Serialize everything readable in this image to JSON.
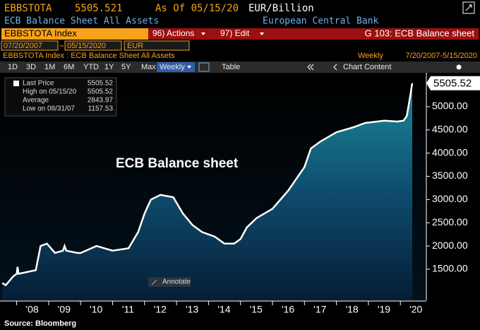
{
  "header": {
    "ticker": "EBBSTOTA",
    "price": "5505.521",
    "as_of": "As Of 05/15/20",
    "units": "EUR/Billion",
    "name": "ECB Balance Sheet All Assets",
    "issuer": "European Central Bank"
  },
  "command_bar": {
    "security": "EBBSTOTA Index",
    "actions": "96) Actions",
    "edit": "97) Edit",
    "page": "G 103: ECB Balance sheet"
  },
  "date_range": {
    "start": "07/20/2007",
    "end": "05/15/2020",
    "currency": "EUR"
  },
  "chart_header": {
    "label": "EBBSTOTA Index : ECB Balance Sheet All Assets",
    "frequency": "Weekly",
    "range": "7/20/2007-5/15/2020"
  },
  "toolbar": {
    "periods": [
      "1D",
      "3D",
      "1M",
      "6M",
      "YTD",
      "1Y",
      "5Y",
      "Max"
    ],
    "frequency": "Weekly",
    "table": "Table",
    "chart_content": "Chart Content"
  },
  "chart_data": {
    "type": "area",
    "annotation": "ECB Balance sheet",
    "legend": [
      {
        "label": "Last Price",
        "value": "5505.52"
      },
      {
        "label": "High on 05/15/20",
        "value": "5505.52"
      },
      {
        "label": "Average",
        "value": "2843.97"
      },
      {
        "label": "Low on 08/31/07",
        "value": "1157.53"
      }
    ],
    "x": [
      2007.55,
      2007.66,
      2007.9,
      2008.0,
      2008.03,
      2008.06,
      2008.6,
      2008.75,
      2008.95,
      2009.2,
      2009.45,
      2009.5,
      2009.55,
      2009.9,
      2010.0,
      2010.5,
      2010.75,
      2011.0,
      2011.5,
      2011.8,
      2012.0,
      2012.2,
      2012.5,
      2012.9,
      2013.2,
      2013.5,
      2013.8,
      2014.2,
      2014.5,
      2014.8,
      2015.0,
      2015.2,
      2015.5,
      2016.0,
      2016.5,
      2017.0,
      2017.2,
      2017.5,
      2018.0,
      2018.5,
      2018.9,
      2019.5,
      2019.9,
      2020.1,
      2020.2,
      2020.3,
      2020.37
    ],
    "values": [
      1200,
      1157.53,
      1350,
      1400,
      1550,
      1400,
      1480,
      2000,
      2050,
      1850,
      1900,
      2000,
      1900,
      1850,
      1850,
      2000,
      1950,
      1900,
      1950,
      2300,
      2700,
      3000,
      3100,
      3050,
      2700,
      2450,
      2300,
      2200,
      2050,
      2050,
      2150,
      2400,
      2600,
      2800,
      3200,
      3700,
      4100,
      4250,
      4450,
      4550,
      4650,
      4700,
      4680,
      4700,
      4800,
      5200,
      5505.52
    ],
    "xlim": [
      2007.48,
      2020.79
    ],
    "xticks": [
      {
        "value": 2008,
        "label": "'08"
      },
      {
        "value": 2009,
        "label": "'09"
      },
      {
        "value": 2010,
        "label": "'10"
      },
      {
        "value": 2011,
        "label": "'11"
      },
      {
        "value": 2012,
        "label": "'12"
      },
      {
        "value": 2013,
        "label": "'13"
      },
      {
        "value": 2014,
        "label": "'14"
      },
      {
        "value": 2015,
        "label": "'15"
      },
      {
        "value": 2016,
        "label": "'16"
      },
      {
        "value": 2017,
        "label": "'17"
      },
      {
        "value": 2018,
        "label": "'18"
      },
      {
        "value": 2019,
        "label": "'19"
      },
      {
        "value": 2020,
        "label": "'20"
      }
    ],
    "ylim": [
      830,
      5730
    ],
    "yticks": [
      {
        "value": 1500,
        "label": "1500.00"
      },
      {
        "value": 2000,
        "label": "2000.00"
      },
      {
        "value": 2500,
        "label": "2500.00"
      },
      {
        "value": 3000,
        "label": "3000.00"
      },
      {
        "value": 3500,
        "label": "3500.00"
      },
      {
        "value": 4000,
        "label": "4000.00"
      },
      {
        "value": 4500,
        "label": "4500.00"
      },
      {
        "value": 5000,
        "label": "5000.00"
      }
    ],
    "color": "#ffffff"
  },
  "annotate_button": "Annotate",
  "footer": "Source: Bloomberg"
}
